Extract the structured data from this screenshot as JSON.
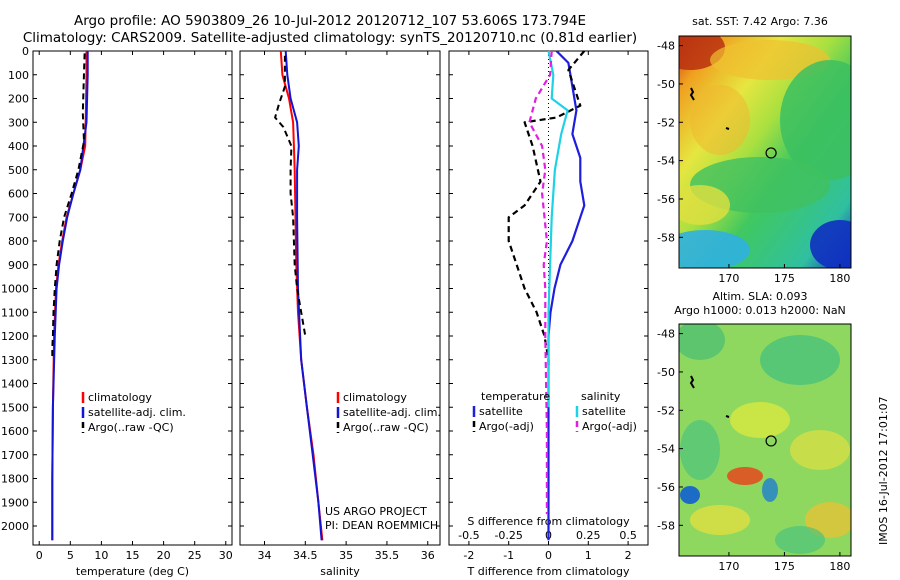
{
  "header": {
    "line1": "Argo profile: AO 5903809_26 10-Jul-2012 20120712_107 53.606S 173.794E",
    "line2": "Climatology: CARS2009. Satellite-adjusted climatology: synTS_20120710.nc (0.81d earlier)"
  },
  "credits": {
    "line1": "US ARGO PROJECT",
    "line2": "PI: DEAN ROEMMICH"
  },
  "colors": {
    "climatology": "#ff0000",
    "satellite": "#1414d2",
    "argo": "#000000",
    "t_diff_sat": "#1e1edc",
    "s_diff_sat": "#1ed2e6",
    "s_diff_argo": "#e11ee1",
    "track": "#000000",
    "position_marker": "#000000"
  },
  "depth_axis": {
    "ticks": [
      0,
      100,
      200,
      300,
      400,
      500,
      600,
      700,
      800,
      900,
      1000,
      1100,
      1200,
      1300,
      1400,
      1500,
      1600,
      1700,
      1800,
      1900,
      2000
    ]
  },
  "chart_data": [
    {
      "id": "temperature",
      "type": "line",
      "xlabel": "temperature (deg C)",
      "xlim": [
        -1,
        31
      ],
      "ylim": [
        0,
        2080
      ],
      "y_reversed": true,
      "xticks": [
        0,
        5,
        10,
        15,
        20,
        25,
        30
      ],
      "legend": [
        "climatology",
        "satellite-adj. clim.",
        "Argo(..raw -QC)"
      ],
      "series": [
        {
          "key": "climatology",
          "x": [
            7.6,
            7.6,
            7.5,
            7.4,
            6.6,
            5.5,
            4.4,
            3.7,
            3.1,
            2.7,
            2.4,
            2.2,
            2.1,
            2.1
          ],
          "y": [
            0,
            100,
            250,
            400,
            500,
            600,
            700,
            800,
            900,
            1000,
            1200,
            1500,
            1800,
            2060
          ]
        },
        {
          "key": "satellite",
          "x": [
            7.8,
            7.8,
            7.6,
            6.6,
            5.5,
            4.5,
            3.8,
            3.2,
            2.8,
            2.5,
            2.2,
            2.1,
            2.1
          ],
          "y": [
            0,
            100,
            300,
            500,
            600,
            700,
            800,
            900,
            1000,
            1200,
            1500,
            1800,
            2060
          ]
        },
        {
          "key": "argo",
          "x": [
            7.3,
            7.0,
            7.2,
            6.3,
            5.2,
            4.0,
            3.3,
            2.8,
            2.5,
            2.3,
            2.2,
            2.1,
            2.1
          ],
          "y": [
            10,
            260,
            380,
            500,
            600,
            700,
            800,
            900,
            1000,
            1100,
            1200,
            1250,
            1300
          ]
        }
      ]
    },
    {
      "id": "salinity",
      "type": "line",
      "xlabel": "salinity",
      "xlim": [
        33.7,
        36.15
      ],
      "ylim": [
        0,
        2080
      ],
      "y_reversed": true,
      "xticks": [
        34,
        34.5,
        35,
        35.5,
        36
      ],
      "legend": [
        "climatology",
        "satellite-adj. clim.",
        "Argo(..raw -QC)"
      ],
      "series": [
        {
          "key": "climatology",
          "x": [
            34.2,
            34.22,
            34.3,
            34.35,
            34.37,
            34.38,
            34.39,
            34.41,
            34.45,
            34.52,
            34.6,
            34.66,
            34.71
          ],
          "y": [
            0,
            100,
            200,
            300,
            500,
            700,
            900,
            1100,
            1300,
            1500,
            1700,
            1900,
            2060
          ]
        },
        {
          "key": "satellite",
          "x": [
            34.26,
            34.28,
            34.32,
            34.4,
            34.42,
            34.4,
            34.4,
            34.41,
            34.45,
            34.52,
            34.59,
            34.66,
            34.7
          ],
          "y": [
            0,
            100,
            200,
            300,
            400,
            500,
            700,
            1000,
            1300,
            1500,
            1700,
            1900,
            2060
          ]
        },
        {
          "key": "argo",
          "x": [
            34.25,
            34.25,
            34.18,
            34.13,
            34.23,
            34.33,
            34.32,
            34.32,
            34.35,
            34.36,
            34.37,
            34.4,
            34.45,
            34.5
          ],
          "y": [
            20,
            150,
            220,
            280,
            320,
            400,
            500,
            600,
            700,
            800,
            900,
            1000,
            1100,
            1200
          ]
        }
      ]
    },
    {
      "id": "difference",
      "type": "line",
      "xlabel": "T difference from climatology",
      "xlabel_top": "S difference from climatology",
      "xlim": [
        -2.5,
        2.5
      ],
      "ylim": [
        0,
        2080
      ],
      "y_reversed": true,
      "xticks_t": [
        -2,
        -1,
        0,
        1,
        2
      ],
      "xticks_s_values": [
        -0.5,
        -0.25,
        0,
        0.25,
        0.5
      ],
      "xticks_s_labels": [
        "-0.5",
        "-0.25",
        "0",
        "0.25",
        "0.5"
      ],
      "legend": {
        "temperature_label": "temperature",
        "salinity_label": "salinity",
        "temperature_items": [
          "satellite",
          "Argo(-adj)"
        ],
        "salinity_items": [
          "satellite",
          "Argo(-adj)"
        ]
      },
      "series": [
        {
          "key": "t_satellite",
          "x": [
            0.2,
            0.5,
            0.6,
            0.7,
            0.6,
            0.8,
            0.8,
            0.9,
            0.8,
            0.6,
            0.3,
            0.15,
            0.05,
            0,
            0,
            0,
            0,
            0
          ],
          "y": [
            0,
            50,
            150,
            250,
            350,
            450,
            550,
            650,
            700,
            800,
            900,
            1000,
            1100,
            1200,
            1500,
            1700,
            1900,
            2060
          ]
        },
        {
          "key": "t_argo",
          "x": [
            0.9,
            0.5,
            0.8,
            0.2,
            -0.6,
            -0.4,
            -0.2,
            -0.6,
            -1.0,
            -1.0,
            -0.8,
            -0.6,
            -0.3,
            -0.1,
            0,
            0
          ],
          "y": [
            0,
            80,
            230,
            280,
            300,
            400,
            550,
            650,
            700,
            800,
            900,
            1000,
            1100,
            1200,
            1300,
            1330
          ]
        },
        {
          "key": "s_satellite",
          "x": [
            0,
            0.03,
            0.02,
            0.12,
            0.08,
            0.04,
            0.02,
            0.01,
            0,
            0,
            0
          ],
          "y": [
            0,
            100,
            200,
            250,
            350,
            500,
            700,
            900,
            1100,
            1400,
            1500
          ]
        },
        {
          "key": "s_argo",
          "x": [
            0.02,
            0.01,
            -0.08,
            -0.12,
            -0.04,
            -0.02,
            -0.04,
            -0.01,
            -0.03,
            -0.02,
            -0.02,
            -0.01,
            -0.01
          ],
          "y": [
            0,
            100,
            200,
            300,
            400,
            500,
            600,
            800,
            900,
            1000,
            1200,
            1600,
            1950
          ]
        }
      ]
    }
  ],
  "maps": [
    {
      "id": "sst",
      "title": "sat. SST: 7.42 Argo: 7.36",
      "xlim": [
        165.5,
        181
      ],
      "ylim": [
        -59.6,
        -47.5
      ],
      "xticks": [
        170,
        175,
        180
      ],
      "yticks": [
        -48,
        -50,
        -52,
        -54,
        -56,
        -58
      ],
      "float_position": [
        173.8,
        -53.6
      ]
    },
    {
      "id": "sla",
      "title_line1": "Altim. SLA: 0.093",
      "title_line2": "Argo h1000: 0.013 h2000: NaN",
      "xlim": [
        165.5,
        181
      ],
      "ylim": [
        -59.6,
        -47.5
      ],
      "xticks": [
        170,
        175,
        180
      ],
      "yticks": [
        -48,
        -50,
        -52,
        -54,
        -56,
        -58
      ],
      "float_position": [
        173.8,
        -53.6
      ]
    }
  ],
  "footer": {
    "stamp": "IMOS 16-Jul-2012 17:01:07"
  }
}
